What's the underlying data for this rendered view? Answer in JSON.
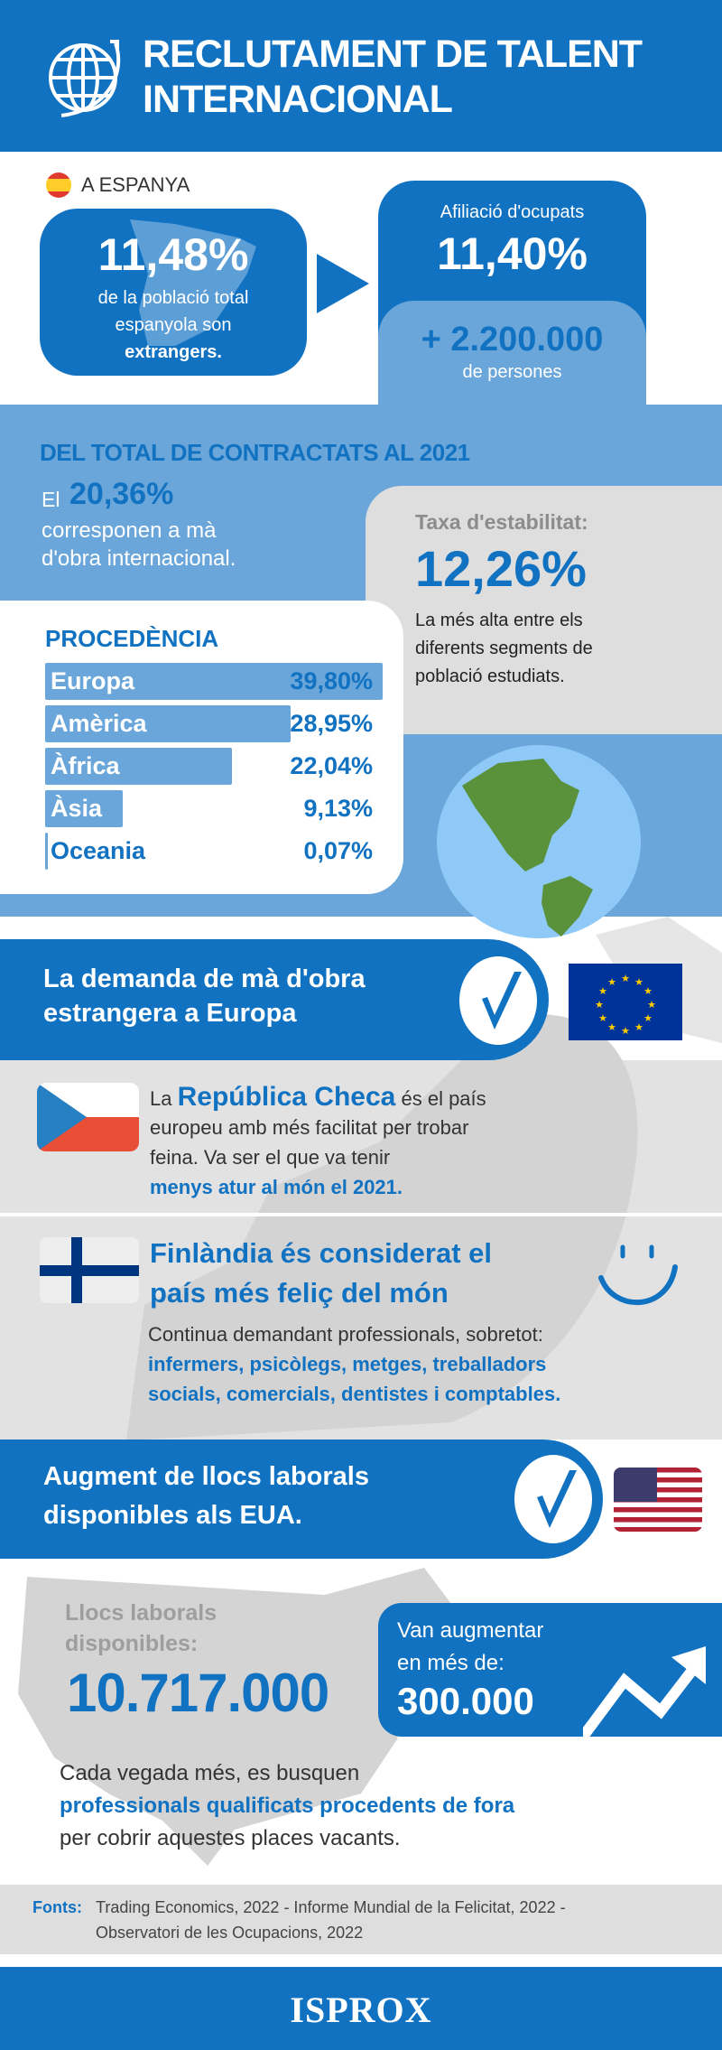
{
  "header": {
    "title_line1": "RECLUTAMENT DE TALENT",
    "title_line2": "INTERNACIONAL",
    "icon": "globe-arrows-icon"
  },
  "spain": {
    "label": "A ESPANYA",
    "pct": "11,48%",
    "desc_line1": "de la població total",
    "desc_line2": "espanyola son",
    "desc_bold": "extrangers.",
    "affil_label": "Afiliació d'ocupats",
    "affil_pct": "11,40%",
    "persons_value": "+ 2.200.000",
    "persons_label": "de persones"
  },
  "contracts": {
    "heading": "DEL TOTAL DE CONTRACTATS AL 2021",
    "el": "El",
    "pct": "20,36%",
    "line1": "corresponen a mà",
    "line2": "d'obra internacional.",
    "stability_label": "Taxa d'estabilitat:",
    "stability_pct": "12,26%",
    "stability_desc1": "La més alta entre els",
    "stability_desc2": "diferents segments de",
    "stability_desc3": "població estudiats."
  },
  "chart_data": {
    "type": "bar",
    "title": "PROCEDÈNCIA",
    "categories": [
      "Europa",
      "Amèrica",
      "Àfrica",
      "Àsia",
      "Oceania"
    ],
    "values": [
      39.8,
      28.95,
      22.04,
      9.13,
      0.07
    ],
    "labels": [
      "39,80%",
      "28,95%",
      "22,04%",
      "9,13%",
      "0,07%"
    ],
    "unit": "%"
  },
  "europe": {
    "banner_line1": "La demanda de mà d'obra",
    "banner_line2": "estrangera a Europa",
    "czech_pre": "La",
    "czech_name": "República Checa",
    "czech_post": "és el país",
    "czech_line2": "europeu amb més facilitat per trobar",
    "czech_line3": "feina. Va ser el que va tenir",
    "czech_line4": "menys atur al món el 2021.",
    "finland_line1": "Finlàndia és considerat el",
    "finland_line2": "país més feliç del món",
    "finland_body": "Continua demandant professionals, sobretot:",
    "finland_list1": "infermers, psicòlegs, metges, treballadors",
    "finland_list2": "socials, comercials, dentistes i comptables."
  },
  "usa": {
    "banner_line1": "Augment de llocs laborals",
    "banner_line2": "disponibles als EUA.",
    "jobs_label1": "Llocs laborals",
    "jobs_label2": "disponibles:",
    "jobs_value": "10.717.000",
    "increase_line1": "Van augmentar",
    "increase_line2": "en més de:",
    "increase_value": "300.000",
    "para_line1": "Cada vegada més, es busquen",
    "para_line2": "professionals qualificats procedents de fora",
    "para_line3": "per cobrir aquestes places vacants."
  },
  "sources": {
    "label": "Fonts:",
    "line1": "Trading Economics, 2022 - Informe Mundial de la Felicitat, 2022 -",
    "line2": "Observatori de les Ocupacions, 2022"
  },
  "footer": {
    "logo": "ISPROX"
  },
  "colors": {
    "primary": "#1172c2",
    "light": "#6aa6d9",
    "grey": "#dedede",
    "land": "#5a913b",
    "ocean": "#8ec9f7"
  }
}
